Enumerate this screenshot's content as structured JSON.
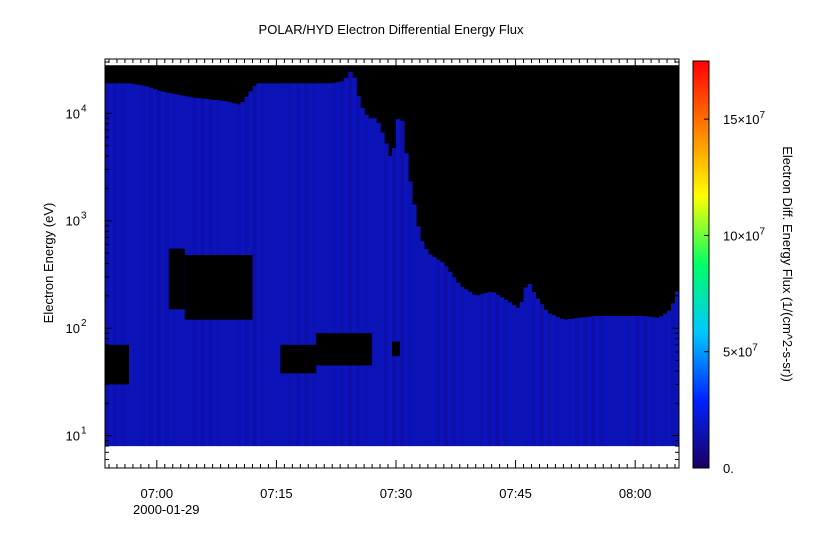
{
  "chart_data": {
    "type": "heatmap",
    "title": "POLAR/HYD  Electron Differential Energy Flux",
    "ylabel": "Electron Energy (eV)",
    "y_scale": "log",
    "ylim": [
      5,
      32000
    ],
    "y_ticks": [
      {
        "value": 10,
        "base": "10",
        "exp": "1"
      },
      {
        "value": 100,
        "base": "10",
        "exp": "2"
      },
      {
        "value": 1000,
        "base": "10",
        "exp": "3"
      },
      {
        "value": 10000,
        "base": "10",
        "exp": "4"
      }
    ],
    "x_ticks": [
      {
        "minute": 0,
        "label": "07:00"
      },
      {
        "minute": 15,
        "label": "07:15"
      },
      {
        "minute": 30,
        "label": "07:30"
      },
      {
        "minute": 45,
        "label": "07:45"
      },
      {
        "minute": 60,
        "label": "08:00"
      }
    ],
    "x_date_label": "2000-01-29",
    "xlim_minutes_after_0700": [
      -6.5,
      65.5
    ],
    "colorbar": {
      "label": "Electron Diff. Energy Flux (1/(cm^2-s-sr))",
      "range": [
        0,
        17500000
      ],
      "ticks": [
        {
          "value": 0,
          "label": "0.",
          "base": "",
          "exp": ""
        },
        {
          "value": 5000000,
          "label": "5×10",
          "base": "5×10",
          "exp": "7"
        },
        {
          "value": 10000000,
          "label": "10×10",
          "base": "10×10",
          "exp": "7"
        },
        {
          "value": 15000000,
          "label": "15×10",
          "base": "15×10",
          "exp": "7"
        }
      ],
      "colormap": [
        "#1a0060",
        "#0022ff",
        "#00c8ff",
        "#00ff66",
        "#ffff00",
        "#ff8000",
        "#ff0000"
      ]
    },
    "data_range": {
      "energy_min_ev": 8,
      "energy_max_ev": 28000,
      "flux_typical": 1500000,
      "no_data_color": "#000000"
    },
    "spectrogram_profile": {
      "time_minutes": [
        -6.5,
        -5.5,
        -3.5,
        -1.5,
        0.5,
        4.5,
        8.5,
        10.5,
        12.5,
        13.5,
        17.0,
        22.0,
        23.5,
        24.5,
        25.5,
        26.5,
        27.5,
        28.5,
        29.5,
        30.5,
        31.5,
        32.0,
        33.0,
        34.0,
        36.0,
        38.0,
        40.0,
        42.0,
        44.0,
        45.5,
        46.5,
        47.5,
        49.0,
        51.0,
        53.0,
        55.0,
        57.0,
        59.0,
        61.0,
        63.0,
        64.5,
        65.5
      ],
      "upper_energy_ev": [
        19000,
        19000,
        19000,
        18000,
        16000,
        14000,
        13000,
        12000,
        19000,
        19000,
        19000,
        19000,
        20000,
        26000,
        12000,
        9000,
        9000,
        6000,
        3500,
        12000,
        3000,
        1800,
        700,
        500,
        400,
        250,
        200,
        220,
        180,
        150,
        280,
        200,
        140,
        120,
        125,
        130,
        130,
        130,
        130,
        125,
        150,
        250
      ]
    },
    "no_data_patches": [
      {
        "t0": -6.5,
        "t1": -3.5,
        "e0": 30,
        "e1": 70
      },
      {
        "t0": 1.5,
        "t1": 3.5,
        "e0": 150,
        "e1": 550
      },
      {
        "t0": 3.5,
        "t1": 12.0,
        "e0": 120,
        "e1": 480
      },
      {
        "t0": 15.5,
        "t1": 20.0,
        "e0": 38,
        "e1": 70
      },
      {
        "t0": 20.0,
        "t1": 27.0,
        "e0": 45,
        "e1": 90
      },
      {
        "t0": 29.5,
        "t1": 30.5,
        "e0": 55,
        "e1": 75
      }
    ]
  }
}
